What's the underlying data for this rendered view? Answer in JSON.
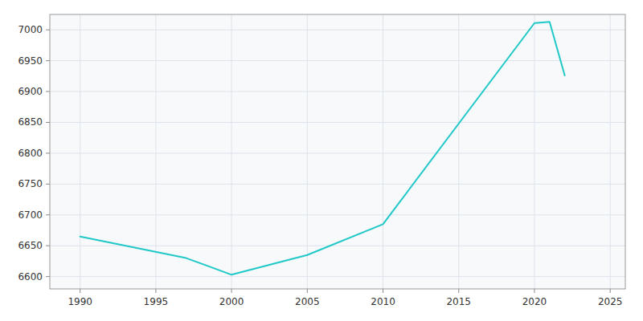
{
  "chart_data": {
    "type": "line",
    "x": [
      1990,
      1997,
      2000,
      2005,
      2010,
      2020,
      2021,
      2022
    ],
    "values": [
      6665,
      6630,
      6603,
      6635,
      6685,
      7011,
      7013,
      6926
    ],
    "color": "#20C8C8",
    "xlim": [
      1988,
      2026
    ],
    "ylim": [
      6580,
      7025
    ],
    "xticks": [
      1990,
      1995,
      2000,
      2005,
      2010,
      2015,
      2020,
      2025
    ],
    "yticks": [
      6600,
      6650,
      6700,
      6750,
      6800,
      6850,
      6900,
      6950,
      7000
    ],
    "grid": true
  }
}
